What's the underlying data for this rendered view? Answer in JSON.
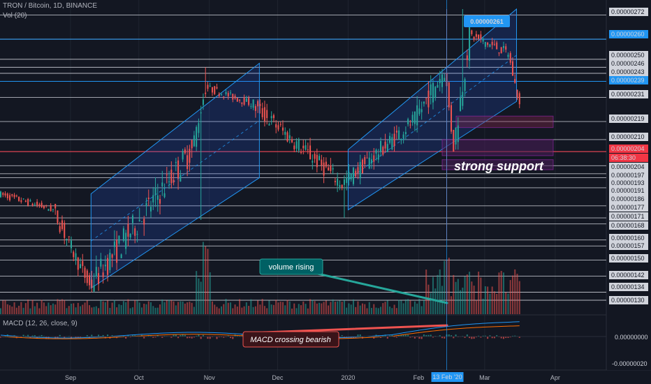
{
  "header": {
    "symbol_line": "TRON / Bitcoin, 1D, BINANCE",
    "volume_label": "Vol (20)",
    "macd_label": "MACD (12, 26, close, 9)"
  },
  "colors": {
    "background": "#131722",
    "up": "#26a69a",
    "down": "#ef5350",
    "channel_fill": "#2962ff",
    "channel_line": "#2196f3",
    "level_line": "#d1d4dc",
    "highlight_blue": "#2196f3",
    "highlight_red": "#f23645",
    "macd_line": "#2196f3",
    "signal_line": "#ff6d00"
  },
  "price_axis": {
    "labels": [
      {
        "text": "0.00000272",
        "style": "plain"
      },
      {
        "text": "0.00000260",
        "style": "blue"
      },
      {
        "text": "0.00000250",
        "style": "plain"
      },
      {
        "text": "0.00000246",
        "style": "plain"
      },
      {
        "text": "0.00000243",
        "style": "plain"
      },
      {
        "text": "0.00000239",
        "style": "blue"
      },
      {
        "text": "0.00000231",
        "style": "plain"
      },
      {
        "text": "0.00000219",
        "style": "plain"
      },
      {
        "text": "0.00000210",
        "style": "plain"
      },
      {
        "text": "0.00000204",
        "style": "red"
      },
      {
        "text": "0.00000204",
        "style": "plain"
      },
      {
        "text": "0.00000197",
        "style": "plain"
      },
      {
        "text": "0.00000193",
        "style": "plain"
      },
      {
        "text": "0.00000191",
        "style": "plain"
      },
      {
        "text": "0.00000186",
        "style": "plain"
      },
      {
        "text": "0.00000177",
        "style": "plain"
      },
      {
        "text": "0.00000171",
        "style": "plain"
      },
      {
        "text": "0.00000168",
        "style": "plain"
      },
      {
        "text": "0.00000160",
        "style": "plain"
      },
      {
        "text": "0.00000157",
        "style": "plain"
      },
      {
        "text": "0.00000150",
        "style": "plain"
      },
      {
        "text": "0.00000142",
        "style": "plain"
      },
      {
        "text": "0.00000134",
        "style": "plain"
      },
      {
        "text": "0.00000130",
        "style": "plain"
      }
    ],
    "countdown": "06:38:30",
    "macd_labels": [
      "0.00000000",
      "-0.00000020"
    ]
  },
  "time_axis": {
    "labels": [
      "Sep",
      "Oct",
      "Nov",
      "Dec",
      "2020",
      "Feb",
      "Mar",
      "Apr"
    ],
    "highlight": "13 Feb '20"
  },
  "annotations": {
    "price_box": "0.00000261",
    "support": "strong support",
    "volume": "volume rising",
    "macd": "MACD crossing bearish"
  },
  "chart_data": [
    {
      "type": "candlestick",
      "title": "TRON / Bitcoin, 1D, BINANCE",
      "x_range": [
        "2019-08-01",
        "2020-03-17"
      ],
      "y_range": [
        1.3e-06,
        2.75e-06
      ],
      "key_levels": [
        2.72e-06,
        2.6e-06,
        2.5e-06,
        2.46e-06,
        2.43e-06,
        2.39e-06,
        2.31e-06,
        2.19e-06,
        2.1e-06,
        2.04e-06,
        1.97e-06,
        1.93e-06,
        1.91e-06,
        1.86e-06,
        1.77e-06,
        1.71e-06,
        1.68e-06,
        1.6e-06,
        1.57e-06,
        1.5e-06,
        1.42e-06,
        1.34e-06,
        1.3e-06
      ],
      "segments": [
        {
          "from": "2019-08-01",
          "to": "2019-08-25",
          "start": 1.83e-06,
          "end": 1.75e-06,
          "lo": 1.66e-06,
          "hi": 1.85e-06
        },
        {
          "from": "2019-08-25",
          "to": "2019-09-10",
          "start": 1.75e-06,
          "end": 1.37e-06,
          "lo": 1.34e-06,
          "hi": 1.78e-06
        },
        {
          "from": "2019-09-10",
          "to": "2019-10-25",
          "start": 1.37e-06,
          "end": 2.05e-06,
          "lo": 1.34e-06,
          "hi": 2.1e-06
        },
        {
          "from": "2019-10-25",
          "to": "2019-10-31",
          "start": 2.05e-06,
          "end": 2.36e-06,
          "lo": 2e-06,
          "hi": 2.46e-06
        },
        {
          "from": "2019-10-31",
          "to": "2019-11-20",
          "start": 2.36e-06,
          "end": 2.28e-06,
          "lo": 2.18e-06,
          "hi": 2.4e-06
        },
        {
          "from": "2019-11-20",
          "to": "2019-12-30",
          "start": 2.28e-06,
          "end": 1.88e-06,
          "lo": 1.82e-06,
          "hi": 2.3e-06
        },
        {
          "from": "2019-12-30",
          "to": "2020-01-31",
          "start": 1.88e-06,
          "end": 2.2e-06,
          "lo": 1.75e-06,
          "hi": 2.24e-06
        },
        {
          "from": "2020-01-31",
          "to": "2020-02-13",
          "start": 2.2e-06,
          "end": 2.45e-06,
          "lo": 2.1e-06,
          "hi": 2.72e-06
        },
        {
          "from": "2020-02-13",
          "to": "2020-02-17",
          "start": 2.45e-06,
          "end": 2.06e-06,
          "lo": 2.04e-06,
          "hi": 2.5e-06
        },
        {
          "from": "2020-02-17",
          "to": "2020-02-24",
          "start": 2.06e-06,
          "end": 2.62e-06,
          "lo": 2.05e-06,
          "hi": 2.75e-06
        },
        {
          "from": "2020-02-24",
          "to": "2020-03-12",
          "start": 2.62e-06,
          "end": 2.53e-06,
          "lo": 2.38e-06,
          "hi": 2.68e-06
        },
        {
          "from": "2020-03-12",
          "to": "2020-03-17",
          "start": 2.53e-06,
          "end": 2.27e-06,
          "lo": 2.25e-06,
          "hi": 2.54e-06
        }
      ],
      "channels": [
        {
          "from": "2019-09-10",
          "to": "2019-11-23",
          "low_start": 1.36e-06,
          "low_end": 1.91e-06,
          "high_start": 1.83e-06,
          "high_end": 2.48e-06
        },
        {
          "from": "2020-01-01",
          "to": "2020-03-15",
          "low_start": 1.75e-06,
          "low_end": 2.29e-06,
          "high_start": 2.05e-06,
          "high_end": 2.75e-06
        }
      ]
    }
  ]
}
